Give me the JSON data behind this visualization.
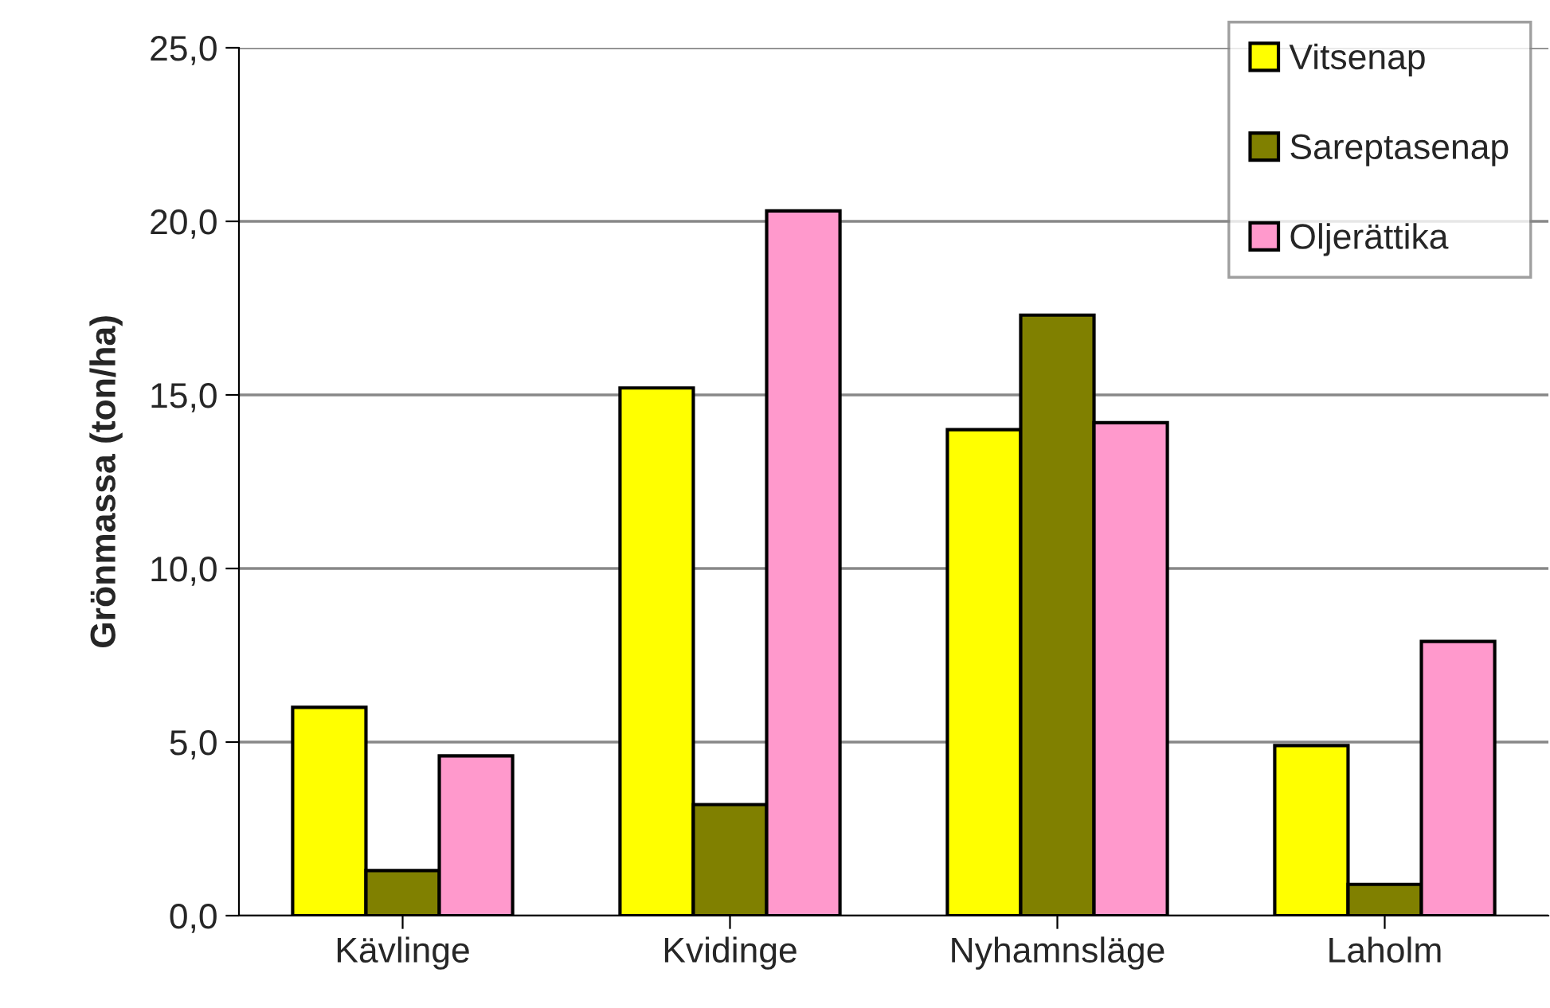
{
  "chart_data": {
    "type": "bar",
    "ylabel": "Grönmassa (ton/ha)",
    "categories": [
      "Kävlinge",
      "Kvidinge",
      "Nyhamnsläge",
      "Laholm"
    ],
    "series": [
      {
        "name": "Vitsenap",
        "color": "#ffff00",
        "values": [
          6.0,
          15.2,
          14.0,
          4.9
        ]
      },
      {
        "name": "Sareptasenap",
        "color": "#808000",
        "values": [
          1.3,
          3.2,
          17.3,
          0.9
        ]
      },
      {
        "name": "Oljerättika",
        "color": "#ff99cc",
        "values": [
          4.6,
          20.3,
          14.2,
          7.9
        ]
      }
    ],
    "ylim": [
      0,
      25
    ],
    "yticks": [
      {
        "value": 0,
        "label": "0,0"
      },
      {
        "value": 5,
        "label": "5,0"
      },
      {
        "value": 10,
        "label": "10,0"
      },
      {
        "value": 15,
        "label": "15,0"
      },
      {
        "value": 20,
        "label": "20,0"
      },
      {
        "value": 25,
        "label": "25,0"
      }
    ],
    "grid": "y",
    "legend": "top right"
  }
}
